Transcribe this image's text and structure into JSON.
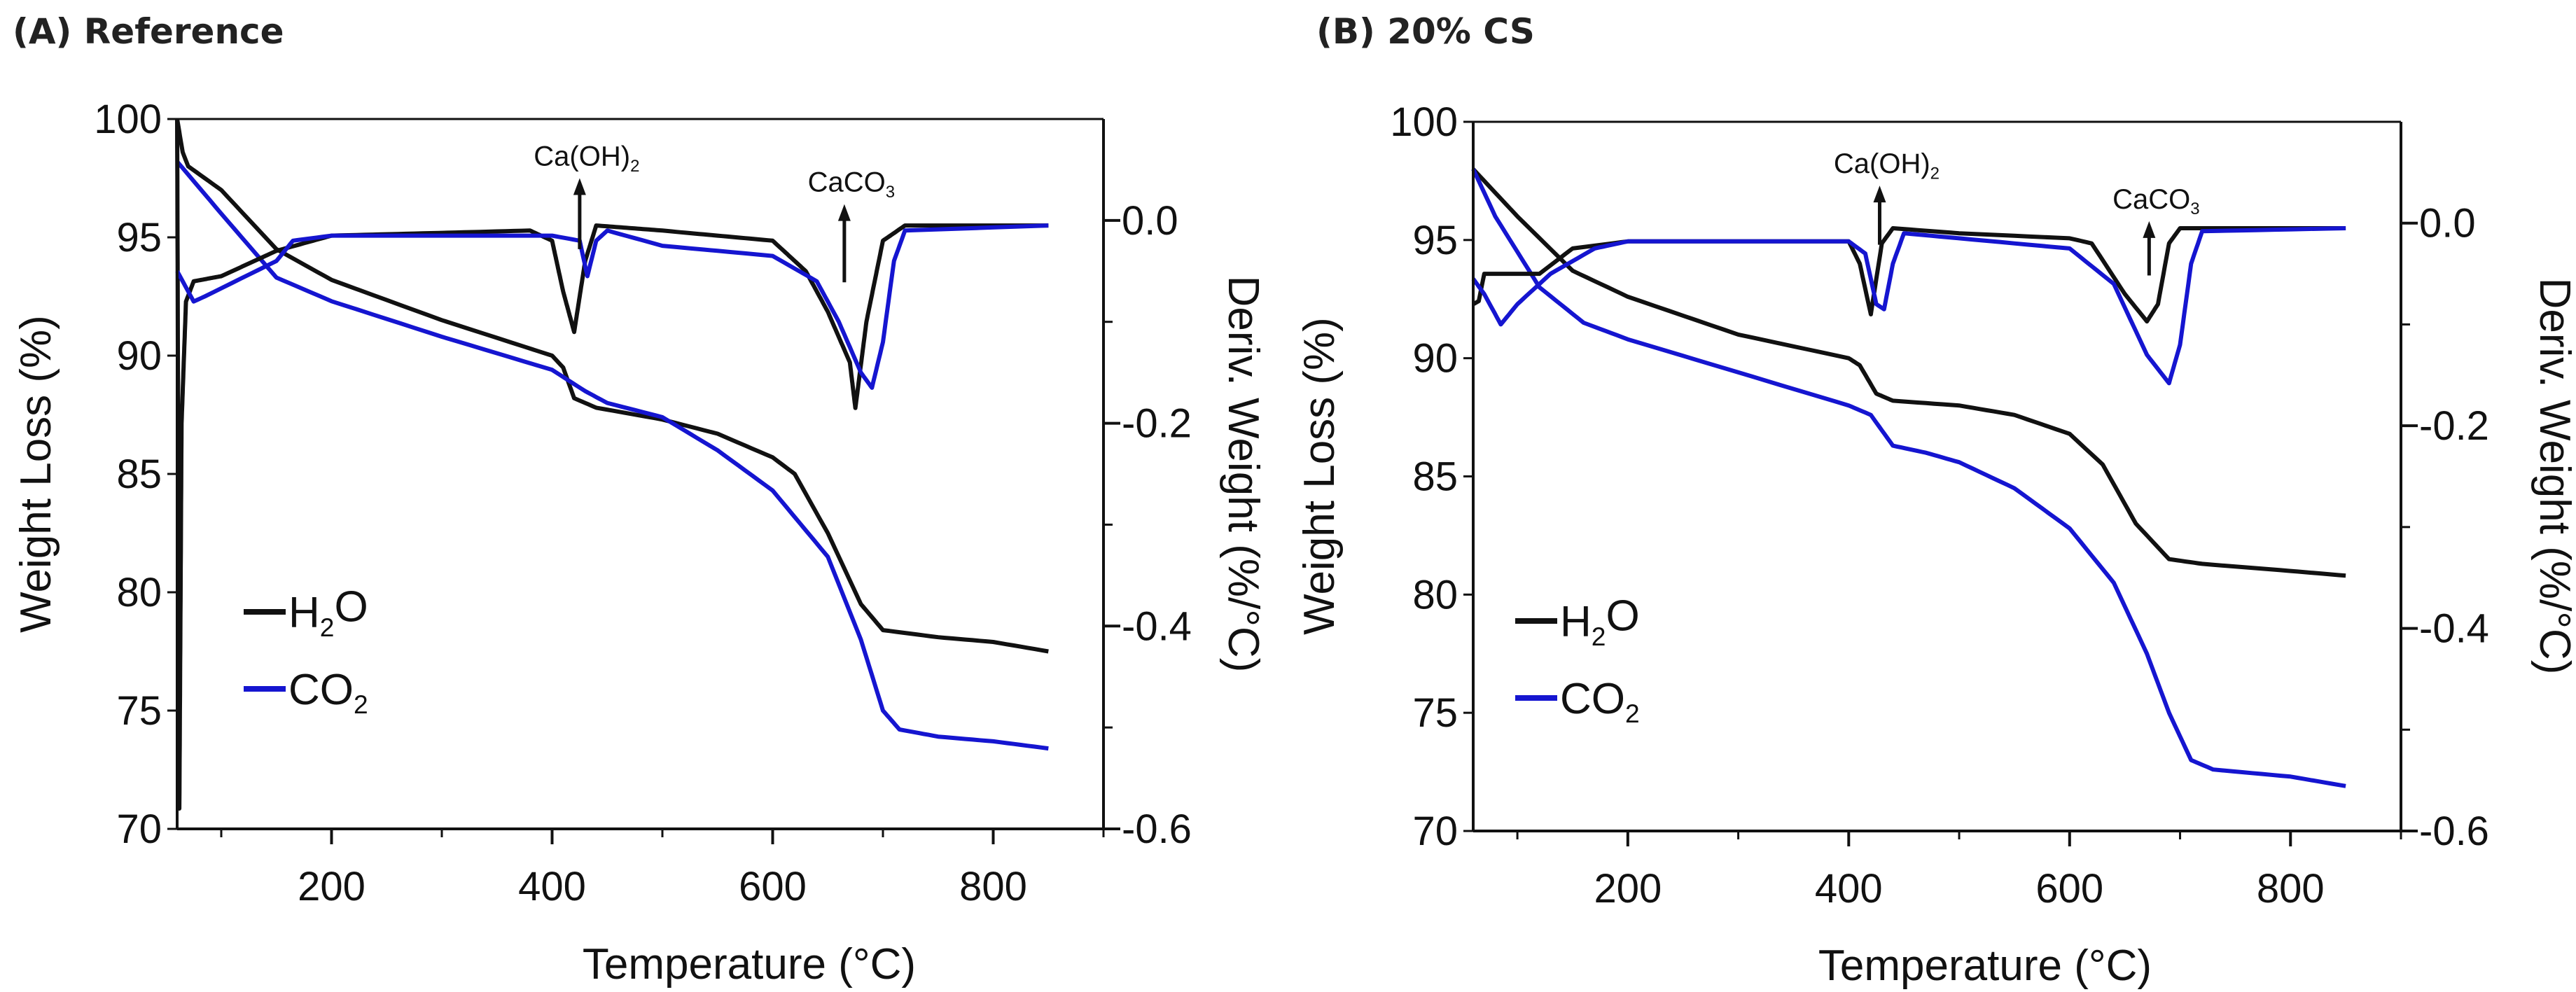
{
  "chart_data": [
    {
      "type": "line",
      "title": "(A) Reference",
      "xlabel": "Temperature (°C)",
      "ylabel": "Weight Loss (%)",
      "y2label": "Deriv. Weight (%/°C)",
      "xlim": [
        60,
        900
      ],
      "ylim": [
        70,
        100
      ],
      "y2lim": [
        -0.6,
        0.1
      ],
      "xticks": [
        200,
        400,
        600,
        800
      ],
      "xminor": [
        100,
        300,
        500,
        700,
        900
      ],
      "yticks": [
        70,
        75,
        80,
        85,
        90,
        95,
        100
      ],
      "y2ticks": [
        -0.6,
        -0.4,
        -0.2,
        0.0
      ],
      "y2tick_labels": [
        "-0.6",
        "-0.4",
        "-0.2",
        "0.0"
      ],
      "y2minor": [
        -0.5,
        -0.3,
        -0.1
      ],
      "grid": false,
      "legend_position": "bottom-left",
      "annotations": [
        {
          "parts": [
            {
              "t": "Ca(OH)"
            },
            {
              "t": "2",
              "sub": true
            }
          ],
          "x": 425,
          "arrow_top": 97.5,
          "arrow_bottom": 94.5
        },
        {
          "parts": [
            {
              "t": "CaCO"
            },
            {
              "t": "3",
              "sub": true
            }
          ],
          "x": 665,
          "arrow_top": 96.4,
          "arrow_bottom": 93.1
        }
      ],
      "series": [
        {
          "name": "H2O",
          "parts": [
            {
              "t": "H"
            },
            {
              "t": "2",
              "sub": true
            },
            {
              "t": "O"
            }
          ],
          "color": "#111111",
          "axis": "left",
          "kind": "weight",
          "x": [
            60,
            65,
            70,
            100,
            150,
            200,
            300,
            400,
            410,
            420,
            440,
            500,
            550,
            600,
            620,
            650,
            680,
            700,
            750,
            800,
            850
          ],
          "y": [
            100,
            98.6,
            98,
            97,
            94.5,
            93.2,
            91.5,
            90,
            89.5,
            88.2,
            87.8,
            87.3,
            86.7,
            85.7,
            85,
            82.5,
            79.5,
            78.4,
            78.1,
            77.9,
            77.5
          ]
        },
        {
          "name": "CO2",
          "parts": [
            {
              "t": "CO"
            },
            {
              "t": "2",
              "sub": true
            }
          ],
          "color": "#1515d0",
          "axis": "left",
          "kind": "weight",
          "x": [
            60,
            100,
            150,
            200,
            300,
            400,
            430,
            450,
            500,
            550,
            600,
            650,
            680,
            700,
            715,
            750,
            800,
            850
          ],
          "y": [
            98.2,
            96,
            93.3,
            92.3,
            90.8,
            89.4,
            88.5,
            88,
            87.4,
            86,
            84.3,
            81.5,
            78,
            75,
            74.2,
            73.9,
            73.7,
            73.4
          ]
        },
        {
          "name": "H2O deriv",
          "color": "#111111",
          "axis": "right",
          "kind": "deriv",
          "noisy": true,
          "x": [
            60,
            62,
            64,
            68,
            75,
            100,
            150,
            200,
            380,
            400,
            410,
            420,
            430,
            440,
            500,
            600,
            630,
            650,
            670,
            675,
            685,
            700,
            720,
            850
          ],
          "y": [
            0.1,
            -0.58,
            -0.2,
            -0.08,
            -0.06,
            -0.055,
            -0.03,
            -0.015,
            -0.01,
            -0.02,
            -0.07,
            -0.11,
            -0.04,
            -0.005,
            -0.01,
            -0.02,
            -0.05,
            -0.09,
            -0.14,
            -0.185,
            -0.1,
            -0.02,
            -0.005,
            -0.005
          ]
        },
        {
          "name": "CO2 deriv",
          "color": "#1515d0",
          "axis": "right",
          "kind": "deriv",
          "x": [
            60,
            75,
            85,
            150,
            165,
            200,
            400,
            425,
            432,
            440,
            450,
            500,
            600,
            640,
            660,
            680,
            690,
            700,
            710,
            720,
            850
          ],
          "y": [
            -0.05,
            -0.08,
            -0.075,
            -0.04,
            -0.02,
            -0.015,
            -0.015,
            -0.02,
            -0.055,
            -0.02,
            -0.01,
            -0.025,
            -0.035,
            -0.06,
            -0.1,
            -0.15,
            -0.165,
            -0.12,
            -0.04,
            -0.01,
            -0.005
          ]
        }
      ]
    },
    {
      "type": "line",
      "title": "(B) 20% CS",
      "xlabel": "Temperature (°C)",
      "ylabel": "Weight Loss (%)",
      "y2label": "Deriv. Weight (%/°C)",
      "xlim": [
        60,
        900
      ],
      "ylim": [
        70,
        100
      ],
      "y2lim": [
        -0.6,
        0.1
      ],
      "xticks": [
        200,
        400,
        600,
        800
      ],
      "xminor": [
        100,
        300,
        500,
        700,
        900
      ],
      "yticks": [
        70,
        75,
        80,
        85,
        90,
        95,
        100
      ],
      "y2ticks": [
        -0.6,
        -0.4,
        -0.2,
        0.0
      ],
      "y2tick_labels": [
        "-0.6",
        "-0.4",
        "-0.2",
        "0.0"
      ],
      "y2minor": [
        -0.5,
        -0.3,
        -0.1
      ],
      "grid": false,
      "legend_position": "bottom-left",
      "annotations": [
        {
          "parts": [
            {
              "t": "Ca(OH)"
            },
            {
              "t": "2",
              "sub": true
            }
          ],
          "x": 428,
          "arrow_top": 97.3,
          "arrow_bottom": 94.8
        },
        {
          "parts": [
            {
              "t": "CaCO"
            },
            {
              "t": "3",
              "sub": true
            }
          ],
          "x": 672,
          "arrow_top": 95.8,
          "arrow_bottom": 93.5
        }
      ],
      "series": [
        {
          "name": "H2O",
          "parts": [
            {
              "t": "H"
            },
            {
              "t": "2",
              "sub": true
            },
            {
              "t": "O"
            }
          ],
          "color": "#111111",
          "axis": "left",
          "kind": "weight",
          "x": [
            60,
            100,
            150,
            200,
            300,
            400,
            410,
            425,
            440,
            500,
            550,
            600,
            630,
            660,
            690,
            720,
            800,
            850
          ],
          "y": [
            98,
            96,
            93.7,
            92.6,
            91,
            90,
            89.7,
            88.5,
            88.2,
            88,
            87.6,
            86.8,
            85.5,
            83,
            81.5,
            81.3,
            81,
            80.8
          ]
        },
        {
          "name": "CO2",
          "parts": [
            {
              "t": "CO"
            },
            {
              "t": "2",
              "sub": true
            }
          ],
          "color": "#1515d0",
          "axis": "left",
          "kind": "weight",
          "x": [
            60,
            80,
            120,
            160,
            200,
            300,
            400,
            420,
            440,
            470,
            500,
            550,
            600,
            640,
            670,
            690,
            710,
            730,
            800,
            850
          ],
          "y": [
            98,
            96,
            93,
            91.5,
            90.8,
            89.4,
            88,
            87.6,
            86.3,
            86,
            85.6,
            84.5,
            82.8,
            80.5,
            77.5,
            75,
            73,
            72.6,
            72.3,
            71.9
          ]
        },
        {
          "name": "H2O deriv",
          "color": "#111111",
          "axis": "right",
          "kind": "deriv",
          "x": [
            60,
            65,
            70,
            100,
            120,
            150,
            200,
            400,
            410,
            420,
            430,
            440,
            500,
            600,
            620,
            650,
            670,
            680,
            690,
            700,
            850
          ],
          "y": [
            -0.08,
            -0.077,
            -0.05,
            -0.05,
            -0.05,
            -0.025,
            -0.018,
            -0.018,
            -0.04,
            -0.09,
            -0.02,
            -0.005,
            -0.01,
            -0.015,
            -0.02,
            -0.07,
            -0.097,
            -0.08,
            -0.02,
            -0.005,
            -0.005
          ]
        },
        {
          "name": "CO2 deriv",
          "color": "#1515d0",
          "axis": "right",
          "kind": "deriv",
          "x": [
            60,
            70,
            85,
            100,
            130,
            170,
            200,
            400,
            415,
            425,
            432,
            440,
            450,
            500,
            600,
            640,
            670,
            690,
            700,
            710,
            720,
            850
          ],
          "y": [
            -0.055,
            -0.07,
            -0.1,
            -0.08,
            -0.05,
            -0.025,
            -0.018,
            -0.018,
            -0.03,
            -0.08,
            -0.085,
            -0.04,
            -0.01,
            -0.015,
            -0.025,
            -0.06,
            -0.13,
            -0.158,
            -0.12,
            -0.04,
            -0.008,
            -0.005
          ]
        }
      ]
    }
  ]
}
